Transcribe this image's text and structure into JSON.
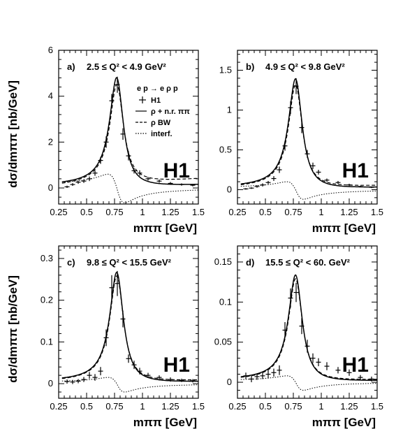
{
  "chart_data": [
    {
      "type": "line",
      "panel_label": "a)",
      "title": "2.5 ≤ Q² < 4.9 GeV²",
      "xlabel": "mππ [GeV]",
      "ylabel": "dσ/dmππ [nb/GeV]",
      "xlim": [
        0.25,
        1.5
      ],
      "ylim": [
        -0.7,
        6
      ],
      "xticks": [
        0.25,
        0.5,
        0.75,
        1,
        1.25,
        1.5
      ],
      "xtick_labels": [
        "0.25",
        "0.5",
        "0.75",
        "1",
        "1.25",
        "1.5"
      ],
      "yticks": [
        0,
        2,
        4,
        6
      ],
      "ytick_labels": [
        "0",
        "2",
        "4",
        "6"
      ],
      "watermark": "H1",
      "legend": {
        "title": "e p → e ρ p",
        "placement": "top-right",
        "items": [
          {
            "style": "cross",
            "label": "H1"
          },
          {
            "style": "solid",
            "label": "ρ + n.r. ππ"
          },
          {
            "style": "dashed",
            "label": "ρ BW"
          },
          {
            "style": "dotted",
            "label": "interf."
          }
        ]
      },
      "curves": {
        "peak": 4.75,
        "bw_peak": 4.35,
        "tail": 0.15,
        "dashed_tail": 0.4,
        "interf": 0.6,
        "interf_neg": 0.65
      },
      "series": [
        {
          "name": "H1",
          "x": [
            0.325,
            0.375,
            0.425,
            0.475,
            0.525,
            0.575,
            0.625,
            0.675,
            0.725,
            0.775,
            0.825,
            0.875,
            0.925,
            0.975,
            1.05,
            1.15,
            1.25,
            1.35,
            1.45
          ],
          "y": [
            0.05,
            0.15,
            0.25,
            0.3,
            0.4,
            0.65,
            1.2,
            2.0,
            3.8,
            4.5,
            2.35,
            1.4,
            0.75,
            0.65,
            0.4,
            0.3,
            0.2,
            0.15,
            0.12
          ],
          "err": [
            0.05,
            0.06,
            0.07,
            0.08,
            0.1,
            0.12,
            0.15,
            0.25,
            0.3,
            0.35,
            0.25,
            0.2,
            0.12,
            0.12,
            0.08,
            0.07,
            0.06,
            0.05,
            0.05
          ]
        }
      ]
    },
    {
      "type": "line",
      "panel_label": "b)",
      "title": "4.9 ≤ Q² < 9.8 GeV²",
      "xlabel": "mππ [GeV]",
      "ylabel": "",
      "xlim": [
        0.25,
        1.5
      ],
      "ylim": [
        -0.18,
        1.75
      ],
      "xticks": [
        0.25,
        0.5,
        0.75,
        1,
        1.25,
        1.5
      ],
      "xtick_labels": [
        "0.25",
        "0.5",
        "0.75",
        "1",
        "1.25",
        "1.5"
      ],
      "yticks": [
        0,
        0.5,
        1,
        1.5
      ],
      "ytick_labels": [
        "0",
        "0.5",
        "1",
        "1.5"
      ],
      "watermark": "H1",
      "curves": {
        "peak": 1.38,
        "bw_peak": 1.3,
        "tail": 0.03,
        "dashed_tail": 0.05,
        "interf": 0.1,
        "interf_neg": 0.12
      },
      "series": [
        {
          "name": "H1",
          "x": [
            0.325,
            0.375,
            0.425,
            0.475,
            0.525,
            0.575,
            0.625,
            0.675,
            0.725,
            0.775,
            0.825,
            0.875,
            0.925,
            0.975,
            1.05,
            1.15,
            1.25,
            1.35,
            1.45
          ],
          "y": [
            0.01,
            0.02,
            0.04,
            0.06,
            0.09,
            0.14,
            0.25,
            0.55,
            1.03,
            1.3,
            0.78,
            0.45,
            0.3,
            0.22,
            0.12,
            0.09,
            0.06,
            0.04,
            0.03
          ],
          "err": [
            0.01,
            0.01,
            0.015,
            0.02,
            0.02,
            0.03,
            0.04,
            0.06,
            0.08,
            0.1,
            0.07,
            0.05,
            0.04,
            0.03,
            0.02,
            0.02,
            0.015,
            0.01,
            0.01
          ]
        }
      ]
    },
    {
      "type": "line",
      "panel_label": "c)",
      "title": "9.8 ≤ Q² < 15.5 GeV²",
      "xlabel": "mππ [GeV]",
      "ylabel": "dσ/dmππ [nb/GeV]",
      "xlim": [
        0.25,
        1.5
      ],
      "ylim": [
        -0.035,
        0.33
      ],
      "xticks": [
        0.25,
        0.5,
        0.75,
        1,
        1.25,
        1.5
      ],
      "xtick_labels": [
        "0.25",
        "0.5",
        "0.75",
        "1",
        "1.25",
        "1.5"
      ],
      "yticks": [
        0,
        0.1,
        0.2,
        0.3
      ],
      "ytick_labels": [
        "0",
        "0.1",
        "0.2",
        "0.3"
      ],
      "watermark": "H1",
      "curves": {
        "peak": 0.265,
        "bw_peak": 0.255,
        "tail": 0.005,
        "dashed_tail": 0.008,
        "interf": 0.015,
        "interf_neg": 0.02
      },
      "series": [
        {
          "name": "H1",
          "x": [
            0.325,
            0.375,
            0.425,
            0.475,
            0.525,
            0.575,
            0.625,
            0.675,
            0.725,
            0.775,
            0.825,
            0.875,
            0.925,
            0.975,
            1.05,
            1.15,
            1.25,
            1.35,
            1.45
          ],
          "y": [
            0.005,
            0.004,
            0.006,
            0.01,
            0.02,
            0.015,
            0.03,
            0.11,
            0.23,
            0.24,
            0.155,
            0.06,
            0.045,
            0.03,
            0.02,
            0.015,
            0.01,
            0.008,
            0.007
          ],
          "err": [
            0.005,
            0.005,
            0.005,
            0.006,
            0.008,
            0.008,
            0.01,
            0.02,
            0.03,
            0.03,
            0.02,
            0.01,
            0.01,
            0.008,
            0.006,
            0.005,
            0.005,
            0.004,
            0.004
          ]
        }
      ]
    },
    {
      "type": "line",
      "panel_label": "d)",
      "title": "15.5 ≤ Q² < 60. GeV²",
      "xlabel": "mππ [GeV]",
      "ylabel": "",
      "xlim": [
        0.25,
        1.5
      ],
      "ylim": [
        -0.02,
        0.17
      ],
      "xticks": [
        0.25,
        0.5,
        0.75,
        1,
        1.25,
        1.5
      ],
      "xtick_labels": [
        "0.25",
        "0.5",
        "0.75",
        "1",
        "1.25",
        "1.5"
      ],
      "yticks": [
        0,
        0.05,
        0.1,
        0.15
      ],
      "ytick_labels": [
        "0",
        "0.05",
        "0.1",
        "0.15"
      ],
      "watermark": "H1",
      "curves": {
        "peak": 0.133,
        "bw_peak": 0.128,
        "tail": 0.002,
        "dashed_tail": 0.003,
        "interf": 0.008,
        "interf_neg": 0.01
      },
      "series": [
        {
          "name": "H1",
          "x": [
            0.325,
            0.375,
            0.425,
            0.475,
            0.525,
            0.575,
            0.625,
            0.675,
            0.725,
            0.775,
            0.825,
            0.875,
            0.925,
            0.975,
            1.05,
            1.15,
            1.25,
            1.35,
            1.45
          ],
          "y": [
            0.008,
            0.004,
            0.007,
            0.008,
            0.01,
            0.012,
            0.015,
            0.065,
            0.105,
            0.112,
            0.07,
            0.045,
            0.03,
            0.025,
            0.02,
            0.015,
            0.012,
            0.006,
            0.004
          ],
          "err": [
            0.004,
            0.004,
            0.004,
            0.004,
            0.005,
            0.005,
            0.006,
            0.01,
            0.012,
            0.012,
            0.01,
            0.008,
            0.006,
            0.005,
            0.005,
            0.004,
            0.004,
            0.003,
            0.003
          ]
        }
      ]
    }
  ]
}
